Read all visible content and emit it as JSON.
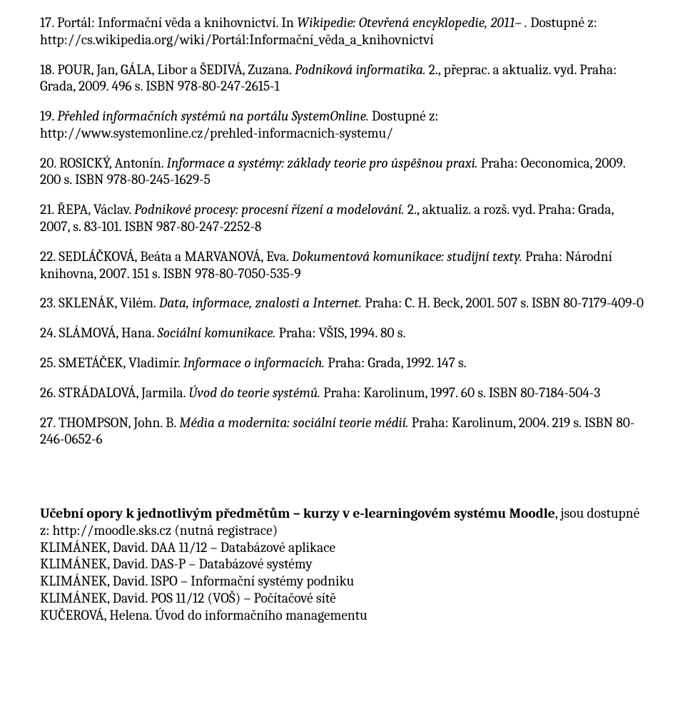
{
  "refs": [
    {
      "num": "17.",
      "pre": "Portál: Informační věda a knihovnictví. In ",
      "ital": "Wikipedie: Otevřená encyklopedie, 2011– .",
      "post": " Dostupné z: http://cs.wikipedia.org/wiki/Portál:Informační_věda_a_knihovnictví"
    },
    {
      "num": "18.",
      "pre": "POUR, Jan, GÁLA, Libor a ŠEDIVÁ, Zuzana. ",
      "ital": "Podniková informatika.",
      "post": " 2., přeprac. a aktualiz. vyd. Praha: Grada, 2009. 496 s. ISBN 978-80-247-2615-1"
    },
    {
      "num": "19.",
      "pre": "",
      "ital": "Přehled informačních systémů na portálu SystemOnline.",
      "post": " Dostupné z: http://www.systemonline.cz/prehled-informacnich-systemu/"
    },
    {
      "num": "20.",
      "pre": "ROSICKÝ, Antonín. ",
      "ital": "Informace a systémy: základy teorie pro úspěšnou praxi.",
      "post": " Praha: Oeconomica, 2009. 200 s. ISBN 978-80-245-1629-5"
    },
    {
      "num": "21.",
      "pre": "ŘEPA, Václav. ",
      "ital": "Podnikové procesy: procesní řízení a modelování.",
      "post": " 2., aktualiz. a rozš. vyd. Praha: Grada, 2007, s. 83-101. ISBN 987-80-247-2252-8"
    },
    {
      "num": "22.",
      "pre": "SEDLÁČKOVÁ, Beáta a MARVANOVÁ, Eva. ",
      "ital": "Dokumentová komunikace: studijní texty.",
      "post": " Praha: Národní knihovna, 2007. 151 s. ISBN 978-80-7050-535-9"
    },
    {
      "num": "23.",
      "pre": "SKLENÁK, Vilém. ",
      "ital": "Data, informace, znalosti a Internet.",
      "post": " Praha: C. H. Beck, 2001. 507 s. ISBN 80-7179-409-0"
    },
    {
      "num": "24.",
      "pre": "SLÁMOVÁ, Hana. ",
      "ital": "Sociální komunikace.",
      "post": " Praha: VŠIS, 1994. 80 s."
    },
    {
      "num": "25.",
      "pre": "SMETÁČEK, Vladimír. ",
      "ital": "Informace o informacích.",
      "post": " Praha: Grada, 1992. 147 s."
    },
    {
      "num": "26.",
      "pre": "STRÁDALOVÁ, Jarmila. ",
      "ital": "Úvod do teorie systémů.",
      "post": " Praha: Karolinum, 1997. 60 s. ISBN 80-7184-504-3"
    },
    {
      "num": "27.",
      "pre": "THOMPSON, John. B. ",
      "ital": "Média a modernita: sociální teorie médií.",
      "post": " Praha: Karolinum, 2004. 219 s. ISBN 80-246-0652-6"
    }
  ],
  "footer": {
    "line1_bold": "Učební opory k jednotlivým předmětům – kurzy v e-learningovém systému Moodle",
    "line1_rest": ", jsou dostupné z: http://moodle.sks.cz (nutná registrace)",
    "lines": [
      "KLIMÁNEK, David. DAA 11/12 – Databázové aplikace",
      "KLIMÁNEK, David. DAS-P – Databázové systémy",
      "KLIMÁNEK, David. ISPO – Informační systémy podniku",
      "KLIMÁNEK, David. POS 11/12 (VOŠ) – Počítačové sítě",
      "KUČEROVÁ, Helena. Úvod do informačního managementu"
    ]
  }
}
